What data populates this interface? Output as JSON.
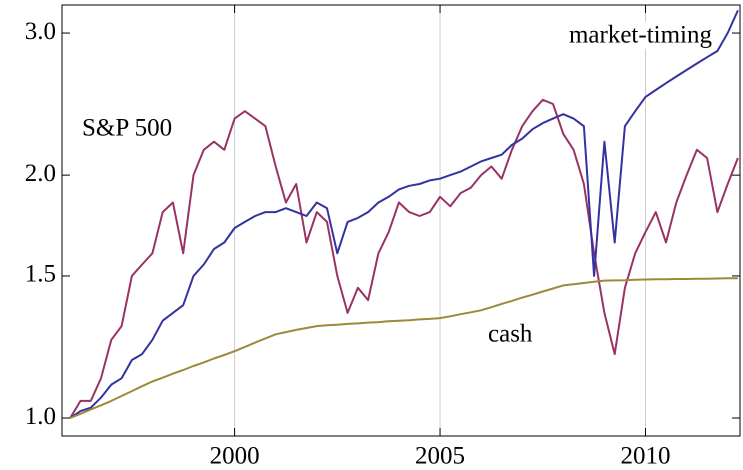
{
  "chart_data": {
    "type": "line",
    "log_y": true,
    "grid": "x",
    "xlim": [
      1995.8,
      2012.3
    ],
    "ylim": [
      0.95,
      3.25
    ],
    "xticks": [
      2000,
      2005,
      2010
    ],
    "yticks": [
      {
        "value": 1,
        "label": "1.0"
      },
      1.5,
      {
        "value": 2,
        "label": "2.0"
      },
      {
        "value": 3,
        "label": "3.0"
      }
    ],
    "x": [
      1996.0,
      1996.25,
      1996.5,
      1996.75,
      1997.0,
      1997.25,
      1997.5,
      1997.75,
      1998.0,
      1998.25,
      1998.5,
      1998.75,
      1999.0,
      1999.25,
      1999.5,
      1999.75,
      2000.0,
      2000.25,
      2000.5,
      2000.75,
      2001.0,
      2001.25,
      2001.5,
      2001.75,
      2002.0,
      2002.25,
      2002.5,
      2002.75,
      2003.0,
      2003.25,
      2003.5,
      2003.75,
      2004.0,
      2004.25,
      2004.5,
      2004.75,
      2005.0,
      2005.25,
      2005.5,
      2005.75,
      2006.0,
      2006.25,
      2006.5,
      2006.75,
      2007.0,
      2007.25,
      2007.5,
      2007.75,
      2008.0,
      2008.25,
      2008.5,
      2008.75,
      2009.0,
      2009.25,
      2009.5,
      2009.75,
      2010.0,
      2010.25,
      2010.5,
      2010.75,
      2011.0,
      2011.25,
      2011.5,
      2011.75,
      2012.0,
      2012.25
    ],
    "series": [
      {
        "name": "S&P 500",
        "color": "#993366",
        "values": [
          1.0,
          1.05,
          1.05,
          1.12,
          1.25,
          1.3,
          1.5,
          1.55,
          1.6,
          1.8,
          1.85,
          1.6,
          2.0,
          2.15,
          2.2,
          2.15,
          2.35,
          2.4,
          2.35,
          2.3,
          2.05,
          1.85,
          1.95,
          1.65,
          1.8,
          1.75,
          1.5,
          1.35,
          1.45,
          1.4,
          1.6,
          1.7,
          1.85,
          1.8,
          1.78,
          1.8,
          1.88,
          1.83,
          1.9,
          1.93,
          2.0,
          2.05,
          1.98,
          2.15,
          2.3,
          2.4,
          2.48,
          2.45,
          2.25,
          2.15,
          1.95,
          1.6,
          1.35,
          1.2,
          1.45,
          1.6,
          1.7,
          1.8,
          1.65,
          1.85,
          2.0,
          2.15,
          2.1,
          1.8,
          1.95,
          2.1
        ]
      },
      {
        "name": "market-timing",
        "color": "#3333a0",
        "values": [
          1.0,
          1.02,
          1.03,
          1.06,
          1.1,
          1.12,
          1.18,
          1.2,
          1.25,
          1.32,
          1.35,
          1.38,
          1.5,
          1.55,
          1.62,
          1.65,
          1.72,
          1.75,
          1.78,
          1.8,
          1.8,
          1.82,
          1.8,
          1.78,
          1.85,
          1.82,
          1.6,
          1.75,
          1.77,
          1.8,
          1.85,
          1.88,
          1.92,
          1.94,
          1.95,
          1.97,
          1.98,
          2.0,
          2.02,
          2.05,
          2.08,
          2.1,
          2.12,
          2.18,
          2.22,
          2.28,
          2.32,
          2.35,
          2.38,
          2.35,
          2.3,
          1.5,
          2.2,
          1.65,
          2.3,
          2.4,
          2.5,
          2.55,
          2.6,
          2.65,
          2.7,
          2.75,
          2.8,
          2.85,
          3.0,
          3.2
        ]
      },
      {
        "name": "cash",
        "color": "#9c8a3a",
        "values": [
          1.0,
          1.012,
          1.025,
          1.037,
          1.05,
          1.065,
          1.08,
          1.095,
          1.11,
          1.122,
          1.135,
          1.147,
          1.16,
          1.172,
          1.185,
          1.197,
          1.21,
          1.225,
          1.24,
          1.255,
          1.27,
          1.278,
          1.286,
          1.293,
          1.3,
          1.303,
          1.305,
          1.308,
          1.31,
          1.313,
          1.315,
          1.318,
          1.32,
          1.322,
          1.325,
          1.327,
          1.33,
          1.337,
          1.345,
          1.352,
          1.36,
          1.372,
          1.385,
          1.397,
          1.41,
          1.422,
          1.435,
          1.447,
          1.46,
          1.465,
          1.47,
          1.475,
          1.48,
          1.481,
          1.482,
          1.484,
          1.485,
          1.486,
          1.486,
          1.487,
          1.487,
          1.488,
          1.488,
          1.489,
          1.49,
          1.49
        ]
      }
    ]
  }
}
